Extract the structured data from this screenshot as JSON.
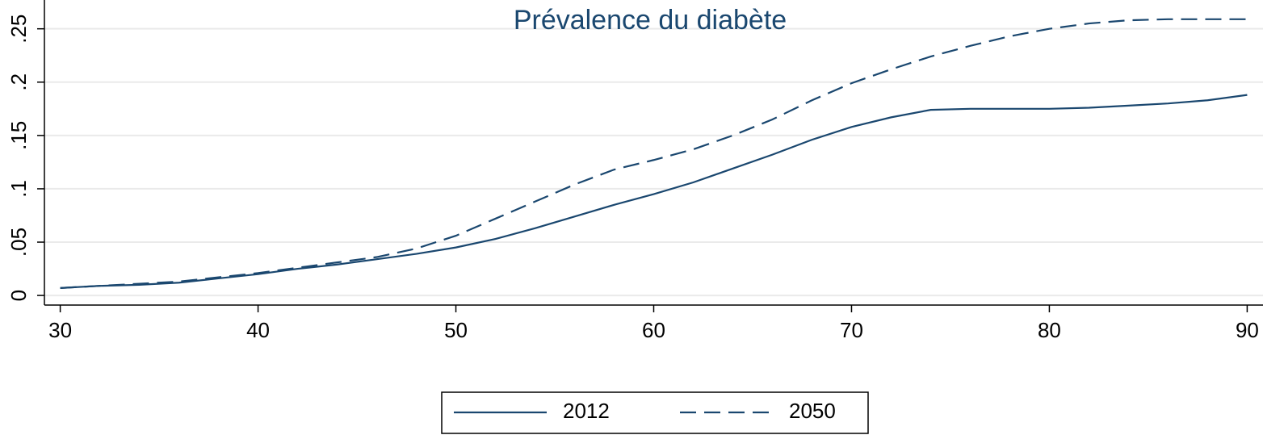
{
  "chart_data": {
    "type": "line",
    "title": "Prévalence du diabète",
    "x": [
      30,
      32,
      34,
      36,
      38,
      40,
      42,
      44,
      46,
      48,
      50,
      52,
      54,
      56,
      58,
      60,
      62,
      64,
      66,
      68,
      70,
      72,
      74,
      76,
      78,
      80,
      82,
      84,
      86,
      88,
      90
    ],
    "series": [
      {
        "name": "2012",
        "color": "#1a476f",
        "dash": false,
        "values": [
          0.007,
          0.009,
          0.01,
          0.012,
          0.016,
          0.02,
          0.025,
          0.029,
          0.034,
          0.039,
          0.045,
          0.053,
          0.063,
          0.074,
          0.085,
          0.095,
          0.106,
          0.119,
          0.132,
          0.146,
          0.158,
          0.167,
          0.174,
          0.175,
          0.175,
          0.175,
          0.176,
          0.178,
          0.18,
          0.183,
          0.188
        ]
      },
      {
        "name": "2050",
        "color": "#1a476f",
        "dash": true,
        "values": [
          0.007,
          0.009,
          0.011,
          0.013,
          0.017,
          0.021,
          0.026,
          0.031,
          0.036,
          0.044,
          0.056,
          0.072,
          0.088,
          0.104,
          0.118,
          0.127,
          0.137,
          0.15,
          0.165,
          0.183,
          0.199,
          0.212,
          0.224,
          0.234,
          0.243,
          0.25,
          0.255,
          0.258,
          0.259,
          0.259,
          0.259
        ]
      }
    ],
    "xlim": [
      29.2,
      90.8
    ],
    "ylim": [
      -0.009,
      0.277
    ],
    "xticks": [
      30,
      40,
      50,
      60,
      70,
      80,
      90
    ],
    "yticks": [
      0,
      {
        "value": 0.05,
        "label": ".05"
      },
      {
        "value": 0.1,
        "label": ".1"
      },
      {
        "value": 0.15,
        "label": ".15"
      },
      {
        "value": 0.2,
        "label": ".2"
      },
      {
        "value": 0.25,
        "label": ".25"
      }
    ],
    "grid": true
  }
}
